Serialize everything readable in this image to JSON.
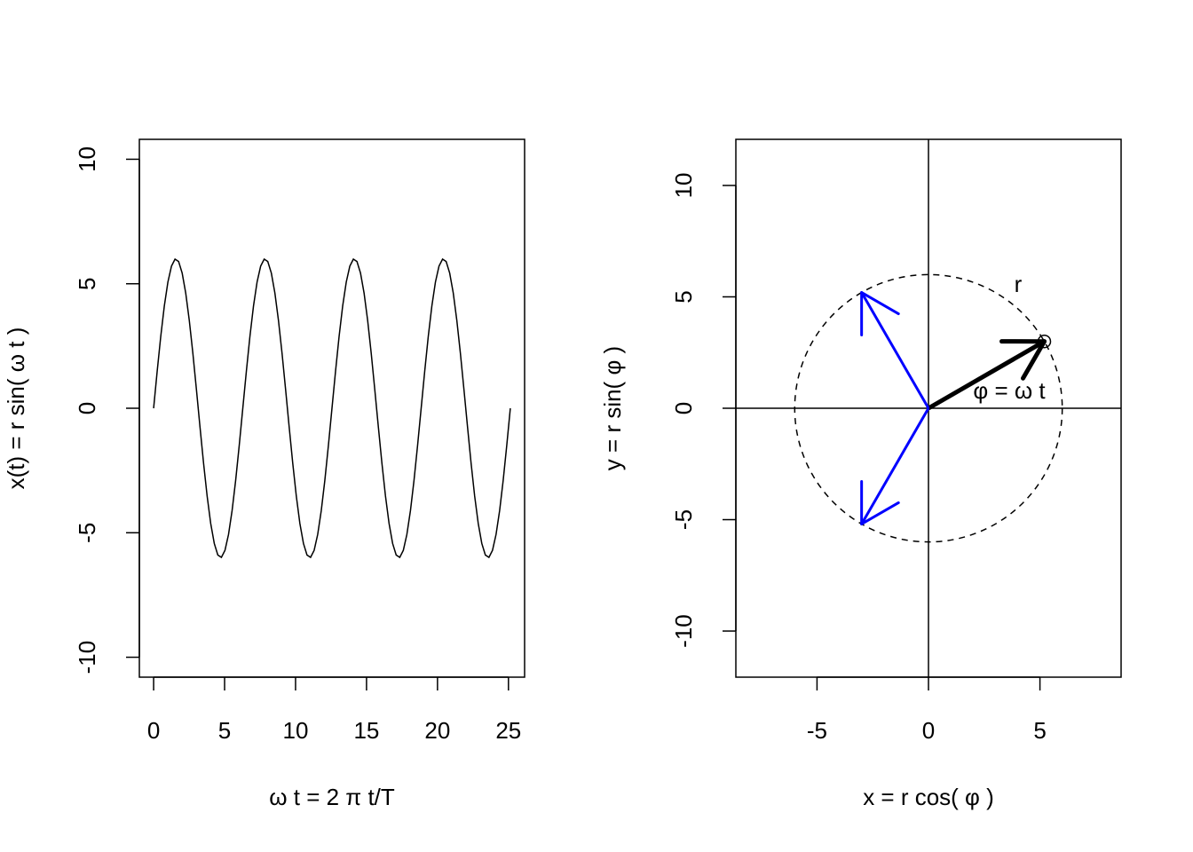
{
  "chart_data": [
    {
      "type": "line",
      "xlabel": "ω t = 2 π t/T",
      "ylabel": "x(t) = r sin( ω t )",
      "xlim": [
        -1.005,
        26.138
      ],
      "ylim": [
        -10.8,
        10.8
      ],
      "xticks": [
        0,
        5,
        10,
        15,
        20,
        25
      ],
      "yticks": [
        -10,
        -5,
        0,
        5,
        10
      ],
      "x": [
        0,
        0.251,
        0.503,
        0.754,
        1.005,
        1.257,
        1.508,
        1.759,
        2.011,
        2.262,
        2.513,
        2.765,
        3.016,
        3.267,
        3.519,
        3.77,
        4.021,
        4.273,
        4.524,
        4.775,
        5.027,
        5.278,
        5.529,
        5.781,
        6.032,
        6.283,
        6.535,
        6.786,
        7.037,
        7.288,
        7.54,
        7.791,
        8.042,
        8.294,
        8.545,
        8.796,
        9.048,
        9.299,
        9.55,
        9.802,
        10.053,
        10.304,
        10.556,
        10.807,
        11.058,
        11.31,
        11.561,
        11.812,
        12.064,
        12.315,
        12.566,
        12.818,
        13.069,
        13.32,
        13.572,
        13.823,
        14.074,
        14.326,
        14.577,
        14.828,
        15.08,
        15.331,
        15.582,
        15.834,
        16.085,
        16.336,
        16.588,
        16.839,
        17.09,
        17.342,
        17.593,
        17.844,
        18.096,
        18.347,
        18.598,
        18.85,
        19.101,
        19.352,
        19.604,
        19.855,
        20.106,
        20.358,
        20.609,
        20.86,
        21.112,
        21.363,
        21.614,
        21.865,
        22.117,
        22.368,
        22.619,
        22.871,
        23.122,
        23.373,
        23.625,
        23.876,
        24.127,
        24.379,
        24.63,
        24.881,
        25.133
      ],
      "series": [
        {
          "color": "#000000",
          "values": [
            0,
            1.492,
            2.891,
            4.107,
            5.066,
            5.706,
            5.988,
            5.894,
            5.429,
            4.623,
            3.527,
            2.209,
            0.752,
            -0.752,
            -2.209,
            -3.527,
            -4.623,
            -5.429,
            -5.894,
            -5.988,
            -5.706,
            -5.066,
            -4.107,
            -2.891,
            -1.492,
            0,
            1.492,
            2.891,
            4.107,
            5.066,
            5.706,
            5.988,
            5.894,
            5.429,
            4.623,
            3.527,
            2.209,
            0.752,
            -0.752,
            -2.209,
            -3.527,
            -4.623,
            -5.429,
            -5.894,
            -5.988,
            -5.706,
            -5.066,
            -4.107,
            -2.891,
            -1.492,
            0,
            1.492,
            2.891,
            4.107,
            5.066,
            5.706,
            5.988,
            5.894,
            5.429,
            4.623,
            3.527,
            2.209,
            0.752,
            -0.752,
            -2.209,
            -3.527,
            -4.623,
            -5.429,
            -5.894,
            -5.988,
            -5.706,
            -5.066,
            -4.107,
            -2.891,
            -1.492,
            0,
            1.492,
            2.891,
            4.107,
            5.066,
            5.706,
            5.988,
            5.894,
            5.429,
            4.623,
            3.527,
            2.209,
            0.752,
            -0.752,
            -2.209,
            -3.527,
            -4.623,
            -5.429,
            -5.894,
            -5.988,
            -5.706,
            -5.066,
            -4.107,
            -2.891,
            -1.492,
            0
          ]
        }
      ]
    },
    {
      "type": "vector",
      "xlabel": "x = r cos( φ )",
      "ylabel": "y = r sin( φ )",
      "xlim": [
        -8.64,
        8.64
      ],
      "ylim": [
        -12.07,
        12.07
      ],
      "xticks": [
        -5,
        0,
        5
      ],
      "yticks": [
        -10,
        -5,
        0,
        5,
        10
      ],
      "radius": 6,
      "vectors": [
        {
          "x": 5.196,
          "y": 3,
          "color": "#000000"
        },
        {
          "x": -3,
          "y": 5.196,
          "color": "#0000ff"
        },
        {
          "x": -3,
          "y": -5.196,
          "color": "#0000ff"
        }
      ],
      "point": {
        "x": 5.196,
        "y": 3
      },
      "annotations": [
        "r",
        "φ = ω t"
      ]
    }
  ]
}
